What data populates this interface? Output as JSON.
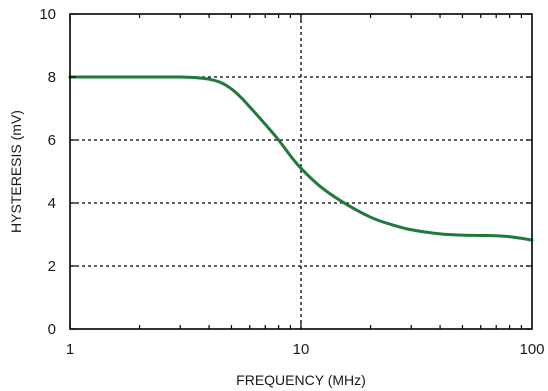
{
  "chart_data": {
    "type": "line",
    "title": "",
    "xlabel": "FREQUENCY (MHz)",
    "ylabel": "HYSTERESIS (mV)",
    "x_scale": "log",
    "xlim": [
      1,
      100
    ],
    "ylim": [
      0,
      10
    ],
    "x_ticks": [
      1,
      10,
      100
    ],
    "x_tick_labels": [
      "1",
      "10",
      "100"
    ],
    "y_ticks": [
      0,
      2,
      4,
      6,
      8,
      10
    ],
    "y_tick_labels": [
      "0",
      "2",
      "4",
      "6",
      "8",
      "10"
    ],
    "grid": {
      "x_major": [
        10
      ],
      "y_major": [
        2,
        4,
        6,
        8
      ],
      "style": "dotted"
    },
    "legend": "none",
    "series": [
      {
        "color": "#1e7a3c",
        "x": [
          1,
          1.5,
          2,
          3,
          3.5,
          4,
          4.5,
          5,
          5.5,
          6,
          7,
          8,
          9,
          10,
          12,
          15,
          20,
          25,
          30,
          40,
          50,
          60,
          70,
          80,
          90,
          100
        ],
        "y": [
          8.0,
          8.0,
          8.0,
          8.0,
          7.98,
          7.93,
          7.82,
          7.62,
          7.35,
          7.05,
          6.5,
          6.0,
          5.5,
          5.1,
          4.55,
          4.05,
          3.55,
          3.3,
          3.15,
          3.02,
          2.98,
          2.97,
          2.96,
          2.93,
          2.88,
          2.82
        ]
      }
    ]
  }
}
